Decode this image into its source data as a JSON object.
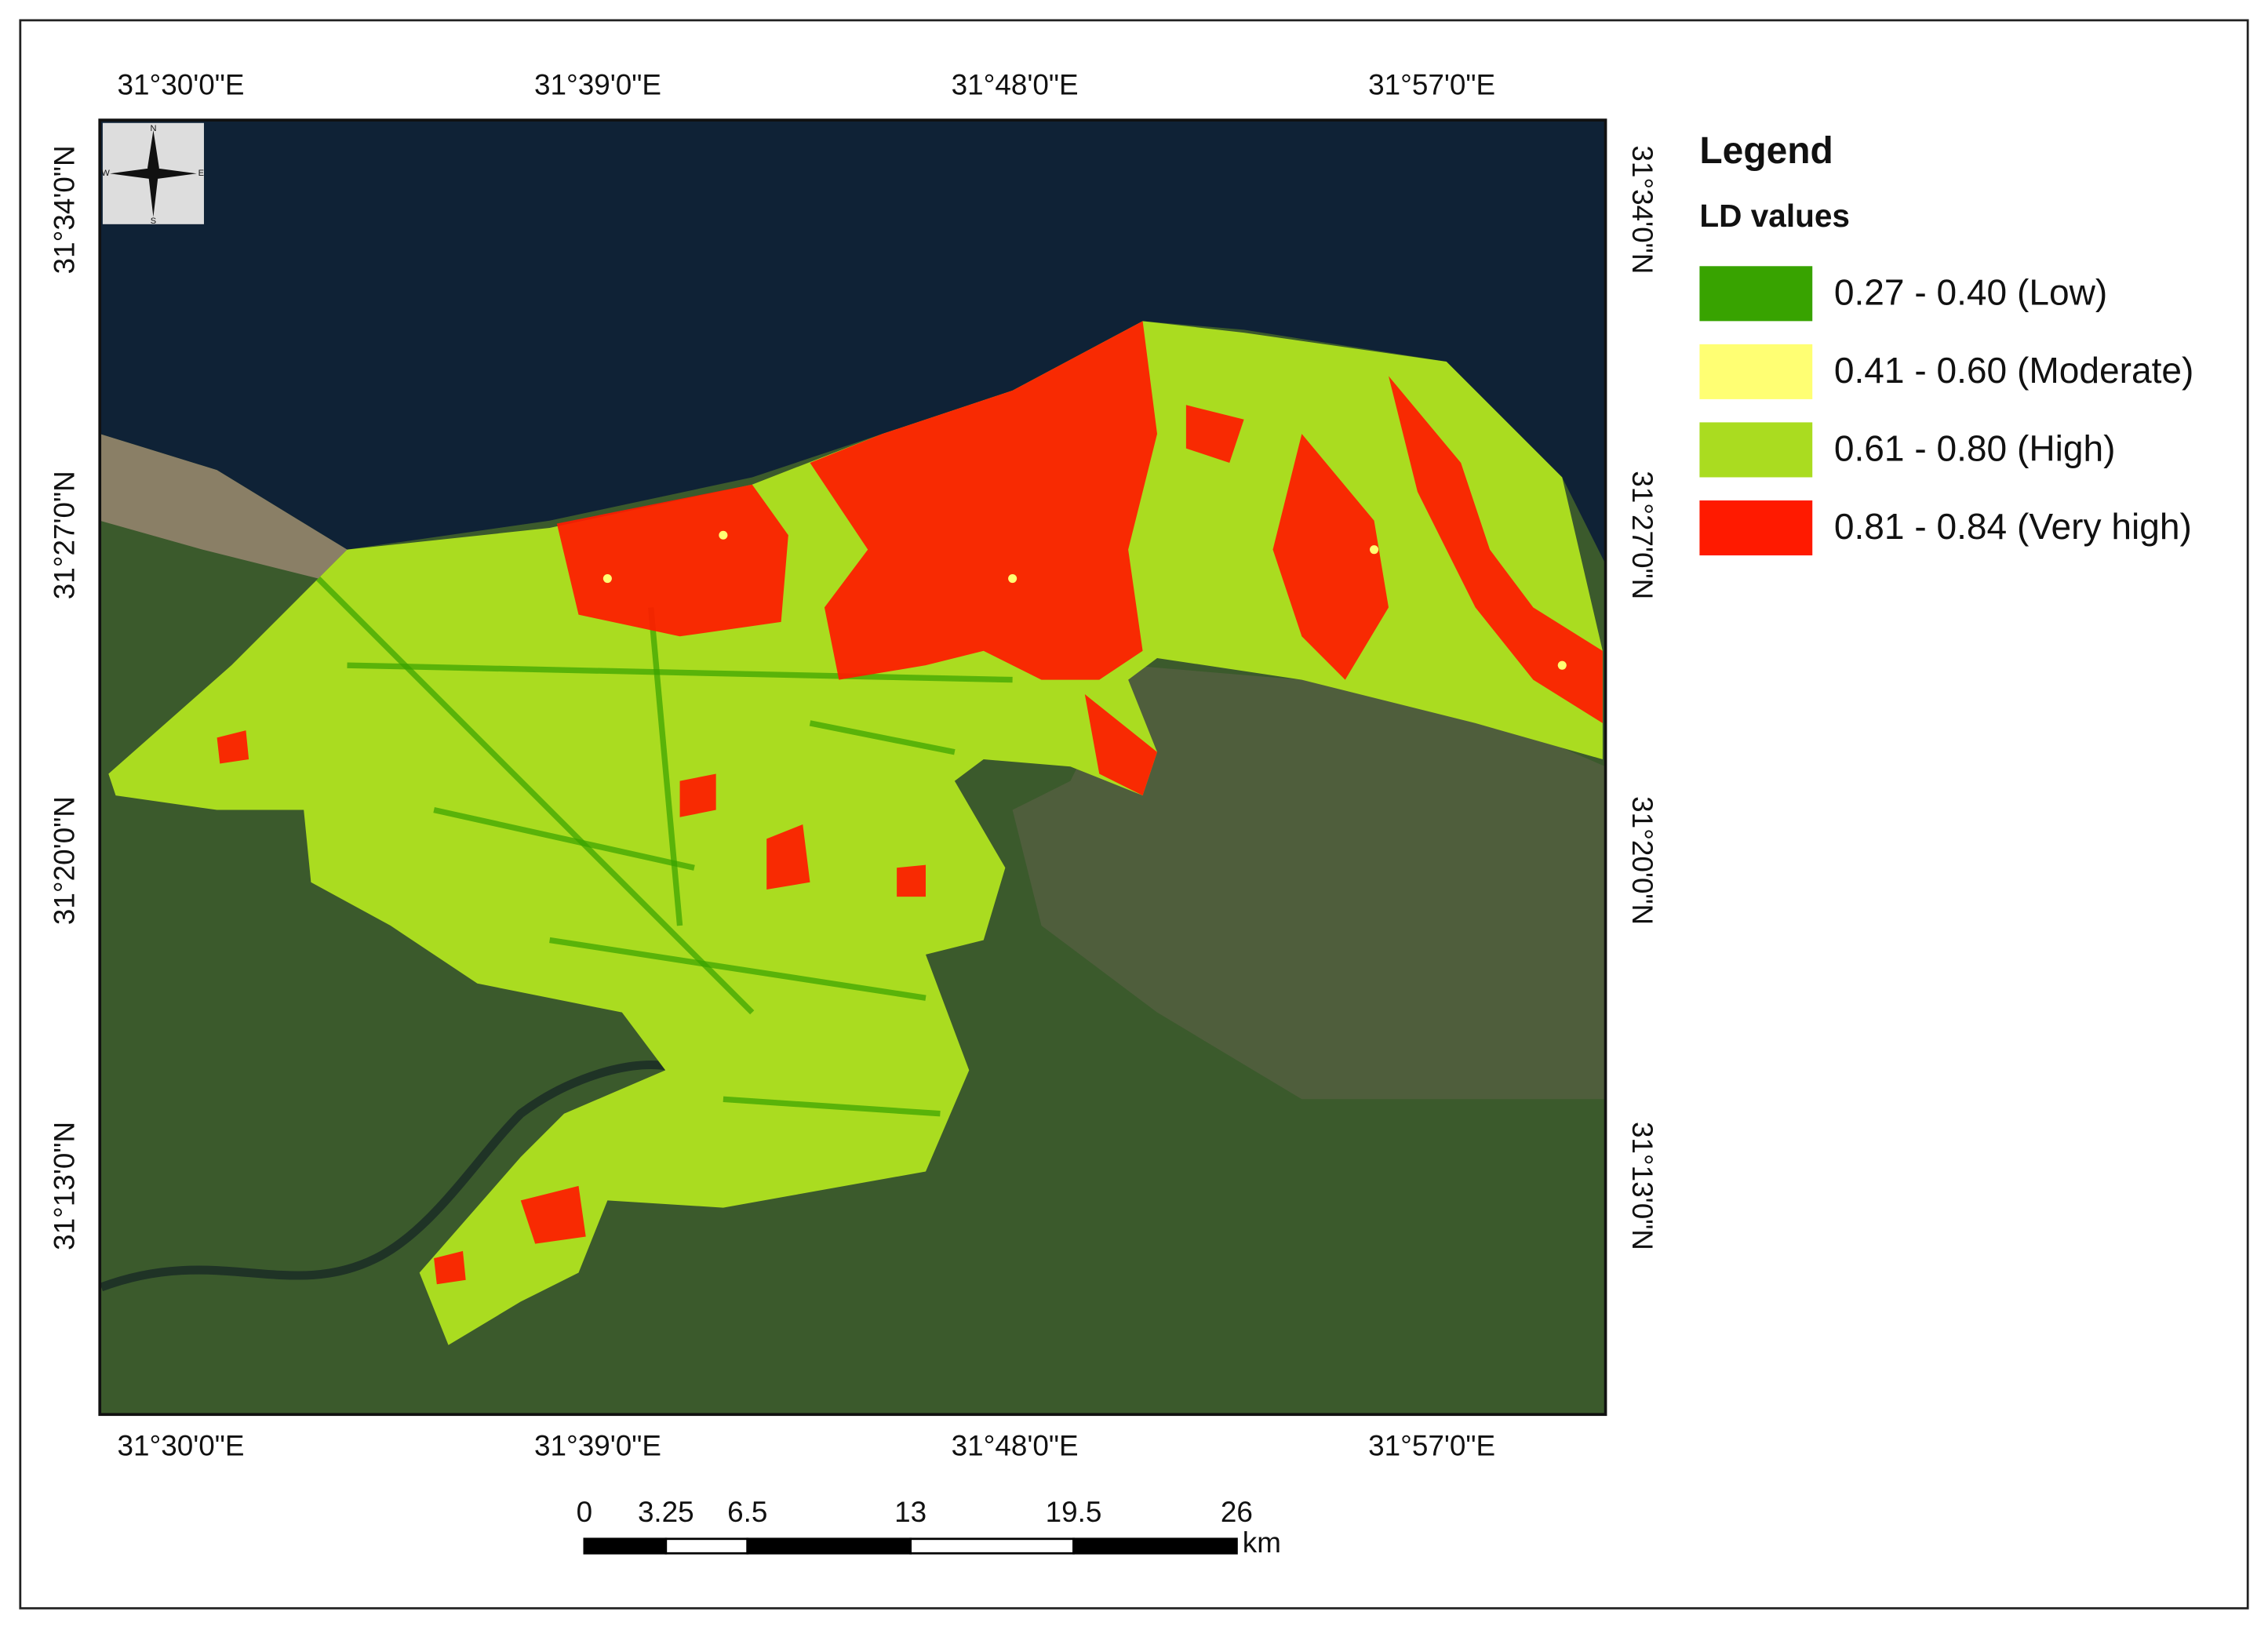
{
  "map": {
    "longitude_labels": [
      "31°30'0\"E",
      "31°39'0\"E",
      "31°48'0\"E",
      "31°57'0\"E"
    ],
    "latitude_labels": [
      "31°34'0\"N",
      "31°27'0\"N",
      "31°20'0\"N",
      "31°13'0\"N"
    ],
    "compass": [
      "N",
      "S",
      "E",
      "W"
    ]
  },
  "legend": {
    "title": "Legend",
    "subtitle": "LD values",
    "items": [
      {
        "label": "0.27 - 0.40 (Low)",
        "color": "#38a300"
      },
      {
        "label": "0.41 - 0.60 (Moderate)",
        "color": "#ffff73"
      },
      {
        "label": "0.61 - 0.80 (High)",
        "color": "#aadc20"
      },
      {
        "label": "0.81 - 0.84 (Very high)",
        "color": "#ff1a00"
      }
    ]
  },
  "scale_bar": {
    "ticks": [
      0,
      3.25,
      6.5,
      13,
      19.5,
      26
    ],
    "unit": "km"
  }
}
